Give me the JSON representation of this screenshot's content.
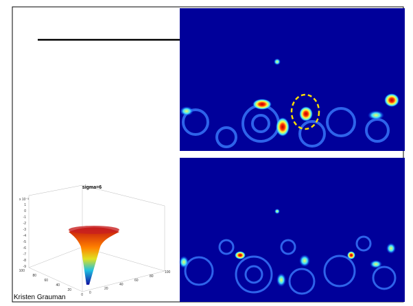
{
  "slide": {
    "credit": "Kristen Grauman",
    "plot": {
      "title": "sigma=6",
      "scale_label": "x 10⁻³",
      "z_ticks": [
        "1",
        "0",
        "-1",
        "-2",
        "-3",
        "-4",
        "-5",
        "-6",
        "-7",
        "-8",
        "-9"
      ],
      "x_ticks": [
        "100",
        "80",
        "60",
        "40",
        "20",
        "0"
      ],
      "y_ticks": [
        "0",
        "20",
        "40",
        "60",
        "80",
        "100"
      ]
    }
  }
}
